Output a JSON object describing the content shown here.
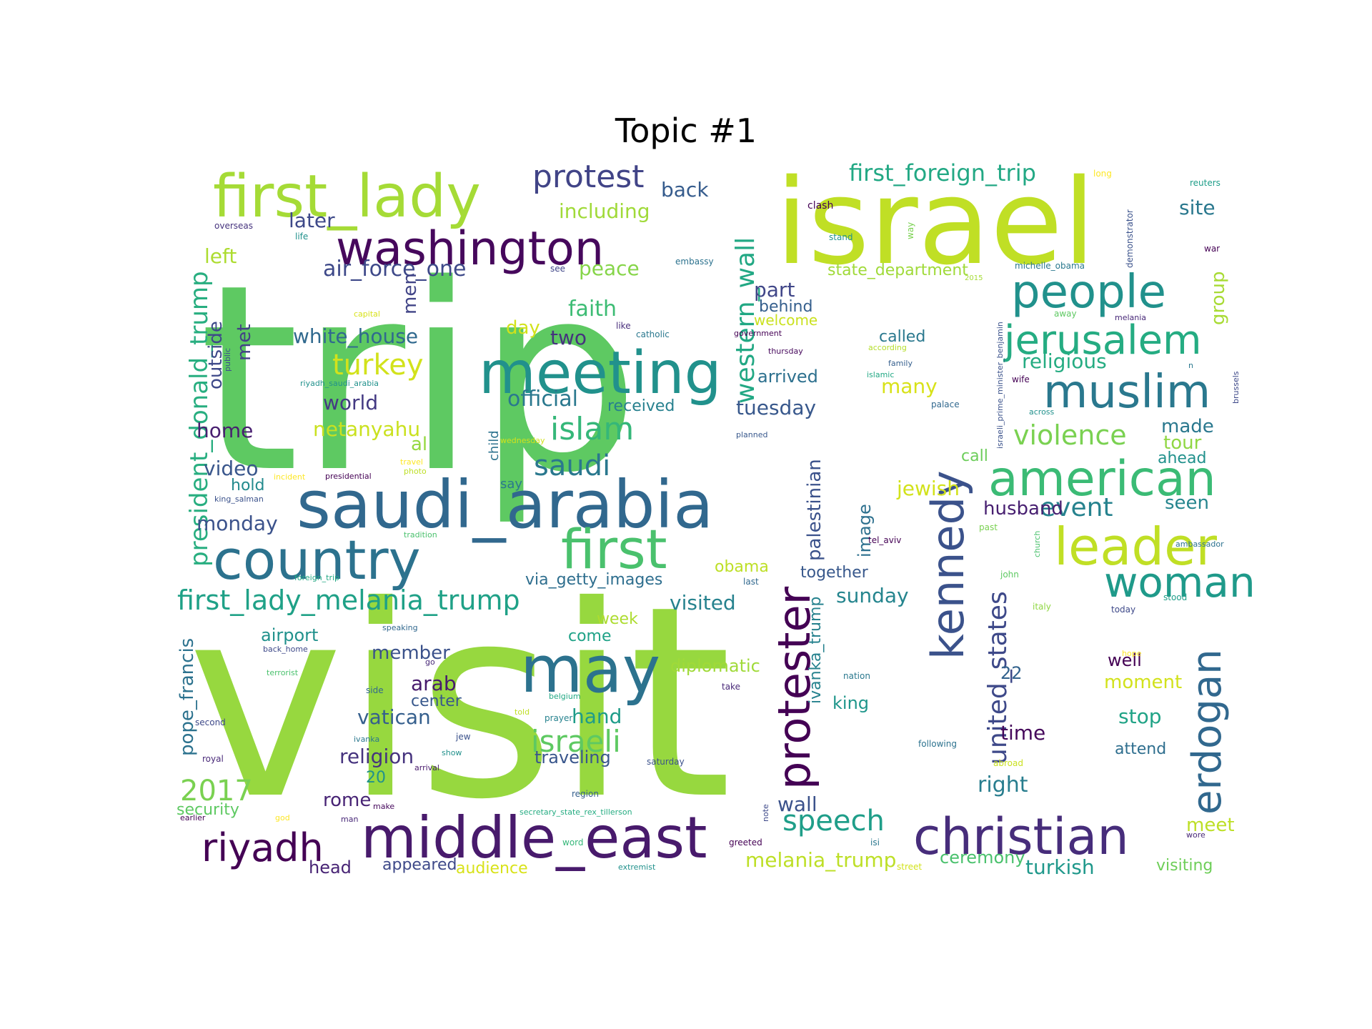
{
  "title": "Topic #1",
  "palette": "viridis",
  "words": [
    {
      "text": "visit",
      "color": "#97d83f"
    },
    {
      "text": "trip",
      "color": "#5ec962"
    },
    {
      "text": "israel",
      "color": "#c0df25"
    },
    {
      "text": "saudi_arabia",
      "color": "#31688e"
    },
    {
      "text": "first_lady",
      "color": "#a5db36"
    },
    {
      "text": "washington",
      "color": "#46085c"
    },
    {
      "text": "meeting",
      "color": "#21918c"
    },
    {
      "text": "country",
      "color": "#2c728e"
    },
    {
      "text": "first",
      "color": "#4ac16d"
    },
    {
      "text": "may",
      "color": "#2c728e"
    },
    {
      "text": "middle_east",
      "color": "#481a6c"
    },
    {
      "text": "christian",
      "color": "#472d7b"
    },
    {
      "text": "american",
      "color": "#3bbb75"
    },
    {
      "text": "people",
      "color": "#21918c"
    },
    {
      "text": "muslim",
      "color": "#2a788e"
    },
    {
      "text": "jerusalem",
      "color": "#25ac82"
    },
    {
      "text": "leader",
      "color": "#c0df25"
    },
    {
      "text": "woman",
      "color": "#1f9a8a"
    },
    {
      "text": "kennedy",
      "color": "#3b528b"
    },
    {
      "text": "erdogan",
      "color": "#31688e"
    },
    {
      "text": "protester",
      "color": "#440154"
    },
    {
      "text": "riyadh",
      "color": "#440154"
    },
    {
      "text": "protest",
      "color": "#414487"
    },
    {
      "text": "first_foreign_trip",
      "color": "#22a884"
    },
    {
      "text": "western_wall",
      "color": "#22a884"
    },
    {
      "text": "president_donald_trump",
      "color": "#28ae80"
    },
    {
      "text": "first_lady_melania_trump",
      "color": "#1fa187"
    },
    {
      "text": "united_states",
      "color": "#3e4989"
    },
    {
      "text": "islam",
      "color": "#35b779"
    },
    {
      "text": "saudi",
      "color": "#2a788e"
    },
    {
      "text": "turkey",
      "color": "#d2e21b"
    },
    {
      "text": "2017",
      "color": "#7ad151"
    },
    {
      "text": "speech",
      "color": "#1f9e89"
    },
    {
      "text": "violence",
      "color": "#7ad151"
    },
    {
      "text": "israeli",
      "color": "#5ec962"
    },
    {
      "text": "event",
      "color": "#26828e"
    },
    {
      "text": "back",
      "color": "#365c8d"
    },
    {
      "text": "including",
      "color": "#a0da39"
    },
    {
      "text": "later",
      "color": "#3e4989"
    },
    {
      "text": "site",
      "color": "#2a788e"
    },
    {
      "text": "left",
      "color": "#addc30"
    },
    {
      "text": "air_force_one",
      "color": "#3e4989"
    },
    {
      "text": "peace",
      "color": "#86d549"
    },
    {
      "text": "state_department",
      "color": "#a0da39"
    },
    {
      "text": "part",
      "color": "#404688"
    },
    {
      "text": "behind",
      "color": "#355f8d"
    },
    {
      "text": "welcome",
      "color": "#cae11f"
    },
    {
      "text": "religious",
      "color": "#25ac82"
    },
    {
      "text": "group",
      "color": "#a8db34"
    },
    {
      "text": "men",
      "color": "#414487"
    },
    {
      "text": "faith",
      "color": "#3dbc74"
    },
    {
      "text": "two",
      "color": "#46337e"
    },
    {
      "text": "day",
      "color": "#d2e21b"
    },
    {
      "text": "white_house",
      "color": "#30698e"
    },
    {
      "text": "outside",
      "color": "#3e4989"
    },
    {
      "text": "met",
      "color": "#424086"
    },
    {
      "text": "world",
      "color": "#443a83"
    },
    {
      "text": "official",
      "color": "#2a788e"
    },
    {
      "text": "received",
      "color": "#27808e"
    },
    {
      "text": "arrived",
      "color": "#2d708e"
    },
    {
      "text": "tuesday",
      "color": "#38588c"
    },
    {
      "text": "many",
      "color": "#d8e219"
    },
    {
      "text": "called",
      "color": "#2a788e"
    },
    {
      "text": "home",
      "color": "#481f70"
    },
    {
      "text": "netanyahu",
      "color": "#cae11f"
    },
    {
      "text": "al",
      "color": "#95d840"
    },
    {
      "text": "made",
      "color": "#2a788e"
    },
    {
      "text": "tour",
      "color": "#90d743"
    },
    {
      "text": "ahead",
      "color": "#21918c"
    },
    {
      "text": "call",
      "color": "#6ccd5a"
    },
    {
      "text": "seen",
      "color": "#25858e"
    },
    {
      "text": "video",
      "color": "#39568c"
    },
    {
      "text": "hold",
      "color": "#238a8d"
    },
    {
      "text": "monday",
      "color": "#3b528b"
    },
    {
      "text": "jewish",
      "color": "#d2e21b"
    },
    {
      "text": "husband",
      "color": "#482071"
    },
    {
      "text": "palestinian",
      "color": "#3b528b"
    },
    {
      "text": "image",
      "color": "#2d708e"
    },
    {
      "text": "together",
      "color": "#38588c"
    },
    {
      "text": "sunday",
      "color": "#25858e"
    },
    {
      "text": "obama",
      "color": "#bddf26"
    },
    {
      "text": "via_getty_images",
      "color": "#2e6e8e"
    },
    {
      "text": "visited",
      "color": "#26828e"
    },
    {
      "text": "week",
      "color": "#addc30"
    },
    {
      "text": "come",
      "color": "#1fa287"
    },
    {
      "text": "ivanka_trump",
      "color": "#26828e"
    },
    {
      "text": "airport",
      "color": "#21918c"
    },
    {
      "text": "member",
      "color": "#3b528b"
    },
    {
      "text": "pope_francis",
      "color": "#2c728e"
    },
    {
      "text": "arab",
      "color": "#481b6d"
    },
    {
      "text": "center",
      "color": "#38588c"
    },
    {
      "text": "vatican",
      "color": "#355f8d"
    },
    {
      "text": "hand",
      "color": "#1e9c89"
    },
    {
      "text": "diplomatic",
      "color": "#a0da39"
    },
    {
      "text": "king",
      "color": "#1f968b"
    },
    {
      "text": "22",
      "color": "#33638d"
    },
    {
      "text": "well",
      "color": "#440154"
    },
    {
      "text": "moment",
      "color": "#d2e21b"
    },
    {
      "text": "stop",
      "color": "#20a386"
    },
    {
      "text": "time",
      "color": "#46085c"
    },
    {
      "text": "attend",
      "color": "#2e6e8e"
    },
    {
      "text": "religion",
      "color": "#46337e"
    },
    {
      "text": "traveling",
      "color": "#39568c"
    },
    {
      "text": "20",
      "color": "#21918c"
    },
    {
      "text": "right",
      "color": "#287d8e"
    },
    {
      "text": "security",
      "color": "#5ec962"
    },
    {
      "text": "rome",
      "color": "#482475"
    },
    {
      "text": "head",
      "color": "#482475"
    },
    {
      "text": "appeared",
      "color": "#3e4989"
    },
    {
      "text": "audience",
      "color": "#d8e219"
    },
    {
      "text": "melania_trump",
      "color": "#bddf26"
    },
    {
      "text": "ceremony",
      "color": "#4ac16d"
    },
    {
      "text": "turkish",
      "color": "#1f988b"
    },
    {
      "text": "meet",
      "color": "#bddf26"
    },
    {
      "text": "visiting",
      "color": "#6ece58"
    },
    {
      "text": "wall",
      "color": "#3b528b"
    },
    {
      "text": "overseas",
      "color": "#46337e"
    },
    {
      "text": "life",
      "color": "#21918c"
    },
    {
      "text": "see",
      "color": "#404688"
    },
    {
      "text": "embassy",
      "color": "#2c728e"
    },
    {
      "text": "clash",
      "color": "#440154"
    },
    {
      "text": "stand",
      "color": "#21918c"
    },
    {
      "text": "way",
      "color": "#7ad151"
    },
    {
      "text": "long",
      "color": "#fde725"
    },
    {
      "text": "demonstrator",
      "color": "#3b528b"
    },
    {
      "text": "reuters",
      "color": "#1f9e89"
    },
    {
      "text": "war",
      "color": "#440154"
    },
    {
      "text": "michelle_obama",
      "color": "#2a788e"
    },
    {
      "text": "2015",
      "color": "#a5db36"
    },
    {
      "text": "israeli_prime_minister_benjamin",
      "color": "#3b528b"
    },
    {
      "text": "melania",
      "color": "#482878"
    },
    {
      "text": "away",
      "color": "#5ec962"
    },
    {
      "text": "capital",
      "color": "#d8e219"
    },
    {
      "text": "like",
      "color": "#472d7b"
    },
    {
      "text": "catholic",
      "color": "#2a788e"
    },
    {
      "text": "government",
      "color": "#440154"
    },
    {
      "text": "thursday",
      "color": "#46085c"
    },
    {
      "text": "according",
      "color": "#b5de2b"
    },
    {
      "text": "family",
      "color": "#355f8d"
    },
    {
      "text": "islamic",
      "color": "#22a884"
    },
    {
      "text": "palace",
      "color": "#31688e"
    },
    {
      "text": "wife",
      "color": "#440154"
    },
    {
      "text": "n",
      "color": "#2a788e"
    },
    {
      "text": "brussels",
      "color": "#3e4989"
    },
    {
      "text": "public",
      "color": "#3b528b"
    },
    {
      "text": "riyadh_saudi_arabia",
      "color": "#21918c"
    },
    {
      "text": "child",
      "color": "#2c728e"
    },
    {
      "text": "wednesday",
      "color": "#d2e21b"
    },
    {
      "text": "planned",
      "color": "#38588c"
    },
    {
      "text": "across",
      "color": "#21918c"
    },
    {
      "text": "travel",
      "color": "#fde725"
    },
    {
      "text": "photo",
      "color": "#bddf26"
    },
    {
      "text": "incident",
      "color": "#fde725"
    },
    {
      "text": "presidential",
      "color": "#440154"
    },
    {
      "text": "say",
      "color": "#2a788e"
    },
    {
      "text": "king_salman",
      "color": "#3b528b"
    },
    {
      "text": "tradition",
      "color": "#4ac16d"
    },
    {
      "text": "tel_aviv",
      "color": "#440154"
    },
    {
      "text": "past",
      "color": "#7ad151"
    },
    {
      "text": "church",
      "color": "#4ac16d"
    },
    {
      "text": "ambassador",
      "color": "#2c728e"
    },
    {
      "text": "foreign_trip",
      "color": "#22a884"
    },
    {
      "text": "last",
      "color": "#31688e"
    },
    {
      "text": "john",
      "color": "#5ec962"
    },
    {
      "text": "stood",
      "color": "#1f9e89"
    },
    {
      "text": "italy",
      "color": "#90d743"
    },
    {
      "text": "today",
      "color": "#3e4989"
    },
    {
      "text": "speaking",
      "color": "#31688e"
    },
    {
      "text": "back_home",
      "color": "#3e4989"
    },
    {
      "text": "hope",
      "color": "#fde725"
    },
    {
      "text": "go",
      "color": "#482878"
    },
    {
      "text": "terrorist",
      "color": "#4ac16d"
    },
    {
      "text": "nation",
      "color": "#2a788e"
    },
    {
      "text": "take",
      "color": "#482878"
    },
    {
      "text": "side",
      "color": "#31688e"
    },
    {
      "text": "belgium",
      "color": "#22a884"
    },
    {
      "text": "second",
      "color": "#3e4989"
    },
    {
      "text": "told",
      "color": "#c0df25"
    },
    {
      "text": "prayer",
      "color": "#26828e"
    },
    {
      "text": "ivanka",
      "color": "#2a788e"
    },
    {
      "text": "jew",
      "color": "#3b528b"
    },
    {
      "text": "show",
      "color": "#21918c"
    },
    {
      "text": "following",
      "color": "#2c728e"
    },
    {
      "text": "royal",
      "color": "#482878"
    },
    {
      "text": "arrival",
      "color": "#481a6c"
    },
    {
      "text": "saturday",
      "color": "#3b528b"
    },
    {
      "text": "abroad",
      "color": "#cae11f"
    },
    {
      "text": "region",
      "color": "#355f8d"
    },
    {
      "text": "earlier",
      "color": "#440154"
    },
    {
      "text": "make",
      "color": "#46085c"
    },
    {
      "text": "man",
      "color": "#482878"
    },
    {
      "text": "god",
      "color": "#fde725"
    },
    {
      "text": "secretary_state_rex_tillerson",
      "color": "#25ac82"
    },
    {
      "text": "note",
      "color": "#3e4989"
    },
    {
      "text": "word",
      "color": "#35b779"
    },
    {
      "text": "greeted",
      "color": "#440154"
    },
    {
      "text": "isi",
      "color": "#2a788e"
    },
    {
      "text": "wore",
      "color": "#482878"
    },
    {
      "text": "extremist",
      "color": "#21918c"
    },
    {
      "text": "street",
      "color": "#d2e21b"
    }
  ]
}
